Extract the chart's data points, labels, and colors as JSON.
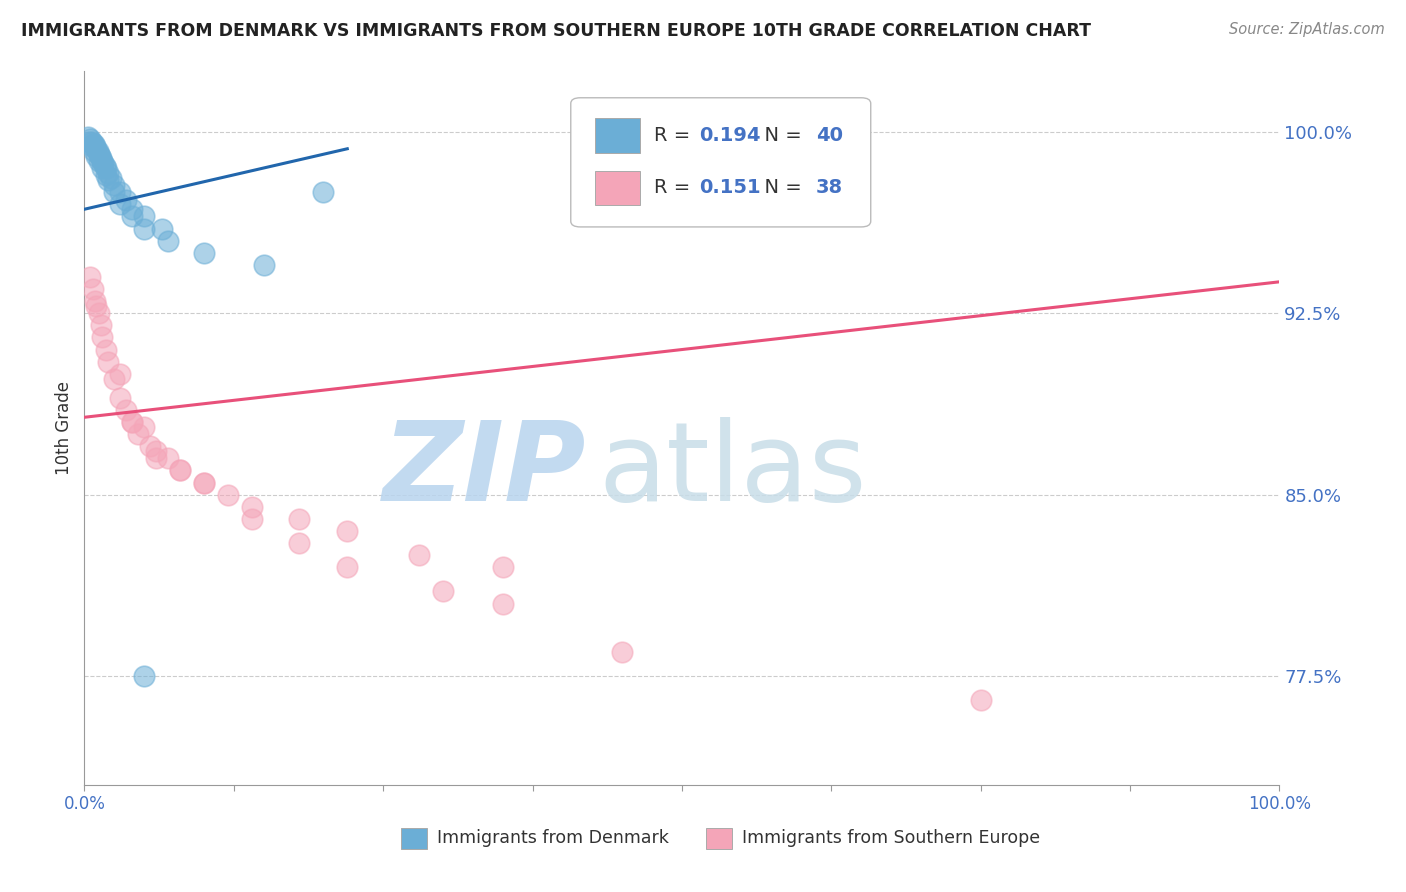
{
  "title": "IMMIGRANTS FROM DENMARK VS IMMIGRANTS FROM SOUTHERN EUROPE 10TH GRADE CORRELATION CHART",
  "source": "Source: ZipAtlas.com",
  "ylabel": "10th Grade",
  "xlim": [
    0.0,
    100.0
  ],
  "ylim": [
    73.0,
    102.5
  ],
  "yticks": [
    77.5,
    85.0,
    92.5,
    100.0
  ],
  "ytick_labels": [
    "77.5%",
    "85.0%",
    "92.5%",
    "100.0%"
  ],
  "xtick_positions": [
    0.0,
    12.5,
    25.0,
    37.5,
    50.0,
    62.5,
    75.0,
    87.5,
    100.0
  ],
  "xtick_labels_show": [
    "0.0%",
    "",
    "",
    "",
    "",
    "",
    "",
    "",
    "100.0%"
  ],
  "watermark_zip": "ZIP",
  "watermark_atlas": "atlas",
  "legend_R_blue": "0.194",
  "legend_N_blue": "40",
  "legend_R_pink": "0.151",
  "legend_N_pink": "38",
  "blue_scatter_x": [
    0.3,
    0.5,
    0.6,
    0.7,
    0.8,
    0.9,
    1.0,
    1.1,
    1.2,
    1.3,
    1.4,
    1.5,
    1.6,
    1.7,
    1.8,
    2.0,
    2.2,
    2.5,
    3.0,
    3.5,
    4.0,
    5.0,
    6.5,
    20.0,
    0.4,
    0.6,
    0.8,
    1.0,
    1.2,
    1.5,
    1.8,
    2.0,
    2.5,
    3.0,
    4.0,
    5.0,
    7.0,
    10.0,
    15.0,
    5.0
  ],
  "blue_scatter_y": [
    99.8,
    99.7,
    99.6,
    99.5,
    99.5,
    99.4,
    99.3,
    99.2,
    99.1,
    99.0,
    98.9,
    98.8,
    98.7,
    98.6,
    98.5,
    98.3,
    98.1,
    97.8,
    97.5,
    97.2,
    96.8,
    96.5,
    96.0,
    97.5,
    99.6,
    99.4,
    99.2,
    99.0,
    98.8,
    98.5,
    98.2,
    98.0,
    97.5,
    97.0,
    96.5,
    96.0,
    95.5,
    95.0,
    94.5,
    77.5
  ],
  "pink_scatter_x": [
    0.5,
    0.7,
    0.9,
    1.0,
    1.2,
    1.4,
    1.5,
    1.8,
    2.0,
    2.5,
    3.0,
    3.5,
    4.0,
    4.5,
    5.5,
    6.0,
    7.0,
    8.0,
    10.0,
    12.0,
    14.0,
    18.0,
    22.0,
    28.0,
    35.0,
    3.0,
    4.0,
    5.0,
    6.0,
    8.0,
    10.0,
    14.0,
    18.0,
    22.0,
    30.0,
    35.0,
    45.0,
    75.0
  ],
  "pink_scatter_y": [
    94.0,
    93.5,
    93.0,
    92.8,
    92.5,
    92.0,
    91.5,
    91.0,
    90.5,
    89.8,
    89.0,
    88.5,
    88.0,
    87.5,
    87.0,
    86.5,
    86.5,
    86.0,
    85.5,
    85.0,
    84.5,
    84.0,
    83.5,
    82.5,
    82.0,
    90.0,
    88.0,
    87.8,
    86.8,
    86.0,
    85.5,
    84.0,
    83.0,
    82.0,
    81.0,
    80.5,
    78.5,
    76.5
  ],
  "blue_line_x": [
    0.0,
    22.0
  ],
  "blue_line_y": [
    96.8,
    99.3
  ],
  "pink_line_x": [
    0.0,
    100.0
  ],
  "pink_line_y": [
    88.2,
    93.8
  ],
  "blue_color": "#6baed6",
  "blue_color_edge": "#6baed6",
  "blue_line_color": "#2166ac",
  "pink_color": "#f4a5b8",
  "pink_color_edge": "#f4a5b8",
  "pink_line_color": "#e8507a",
  "background_color": "#ffffff",
  "grid_color": "#cccccc",
  "watermark_color_zip": "#b8d4ee",
  "watermark_color_atlas": "#c8dde8",
  "title_color": "#222222",
  "source_color": "#888888",
  "ytick_color": "#4472c4",
  "xtick_color": "#4472c4",
  "ylabel_color": "#333333",
  "legend_text_color": "#333333",
  "legend_num_color": "#4472c4",
  "bottom_legend_label1": "Immigrants from Denmark",
  "bottom_legend_label2": "Immigrants from Southern Europe"
}
